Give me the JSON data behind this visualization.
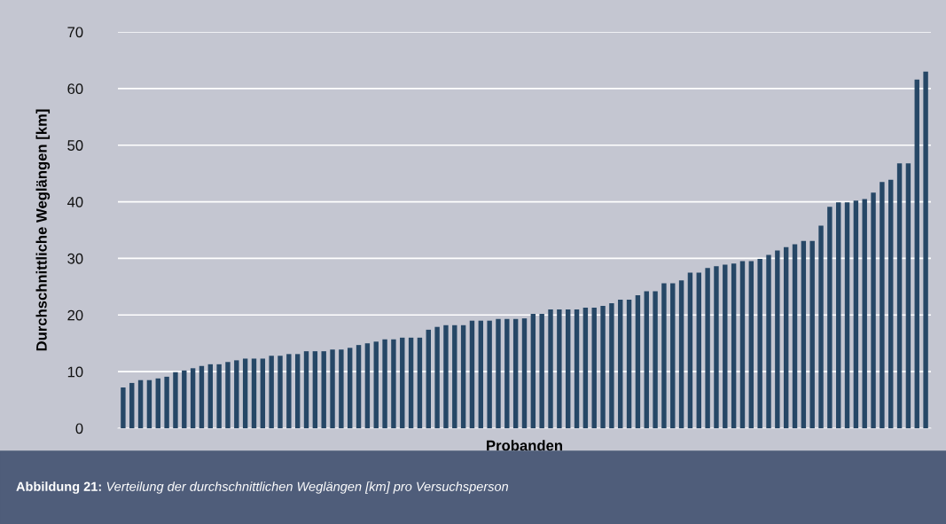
{
  "chart_data": {
    "type": "bar",
    "xlabel": "Probanden",
    "ylabel": "Durchschnittliche Weglängen [km]",
    "annotations": [
      "Abbildung 21:",
      "Verteilung der durchschnittlichen Weglängen [km] pro Versuchsperson"
    ],
    "categories": [
      null,
      null,
      null,
      null,
      null,
      null,
      null,
      null,
      null,
      null,
      null,
      null,
      null,
      null,
      null,
      null,
      null,
      null,
      null,
      null,
      null,
      null,
      null,
      null,
      null,
      null,
      null,
      null,
      null,
      null,
      null,
      null,
      null,
      null,
      null,
      null,
      null,
      null,
      null,
      null,
      null,
      null,
      null,
      null,
      null,
      null,
      null,
      null,
      null,
      null,
      null,
      null,
      null,
      null,
      null,
      null,
      null,
      null,
      null,
      null,
      null,
      null,
      null,
      null,
      null,
      null,
      null,
      null,
      null,
      null,
      null,
      null,
      null,
      null,
      null,
      null,
      null,
      null,
      null,
      null,
      null,
      null,
      null,
      null,
      null,
      null,
      null,
      null,
      null,
      null,
      null,
      null,
      null
    ],
    "values": [
      7.2,
      8.0,
      8.5,
      8.5,
      8.8,
      9.1,
      9.9,
      10.2,
      10.6,
      11.0,
      11.3,
      11.3,
      11.7,
      12.0,
      12.3,
      12.3,
      12.3,
      12.8,
      12.8,
      13.1,
      13.1,
      13.6,
      13.6,
      13.6,
      13.9,
      13.9,
      14.2,
      14.7,
      15.0,
      15.3,
      15.7,
      15.7,
      16.0,
      16.0,
      16.0,
      17.4,
      17.9,
      18.2,
      18.2,
      18.2,
      19.0,
      19.0,
      19.0,
      19.3,
      19.3,
      19.3,
      19.4,
      20.2,
      20.2,
      21.0,
      21.0,
      21.0,
      21.0,
      21.3,
      21.3,
      21.6,
      22.1,
      22.7,
      22.7,
      23.5,
      24.2,
      24.2,
      25.6,
      25.6,
      26.1,
      27.5,
      27.5,
      28.3,
      28.6,
      28.9,
      29.1,
      29.5,
      29.5,
      29.9,
      30.6,
      31.4,
      32.0,
      32.5,
      33.1,
      33.1,
      35.8,
      39.1,
      39.9,
      39.9,
      40.2,
      40.5,
      41.6,
      43.5,
      43.9,
      46.8,
      46.8,
      61.6,
      63.0
    ],
    "color": "#264766",
    "ylim": [
      0,
      70
    ],
    "yticks": [
      0,
      10,
      20,
      30,
      40,
      50,
      60,
      70
    ],
    "grid": "y",
    "legend": false
  }
}
